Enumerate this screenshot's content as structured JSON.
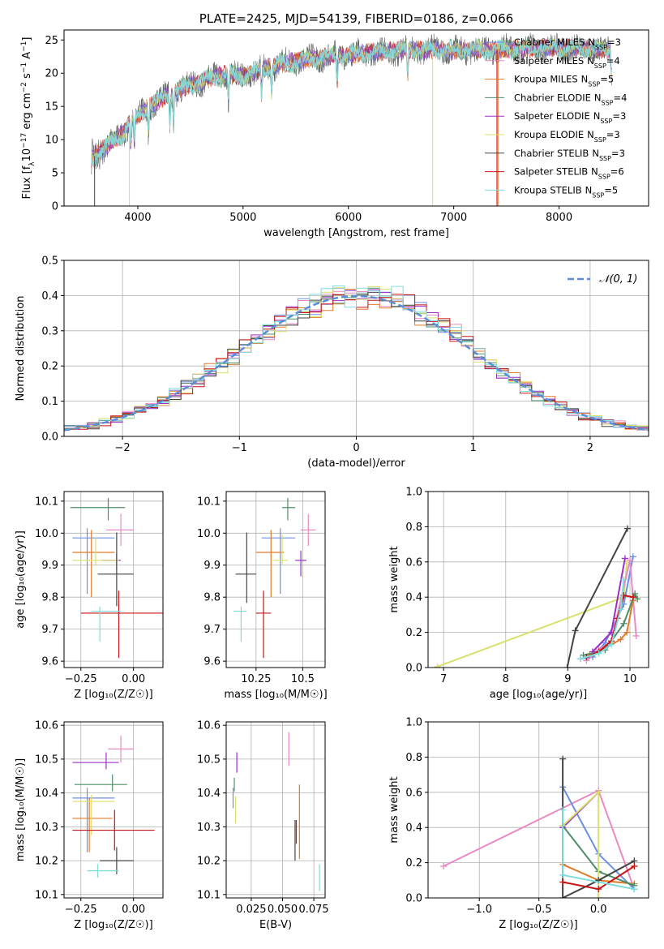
{
  "colors": {
    "Chabrier MILES": "#6b8fe0",
    "Salpeter MILES": "#e88ac4",
    "Kroupa MILES": "#e07b2a",
    "Chabrier ELODIE": "#4f8f67",
    "Salpeter ELODIE": "#9b30c8",
    "Kroupa ELODIE": "#d8e06a",
    "Chabrier STELIB": "#444444",
    "Salpeter STELIB": "#c81414",
    "Kroupa STELIB": "#7fdcdc"
  },
  "chart_data": [
    {
      "id": "spectrum",
      "type": "line",
      "title": "PLATE=2425, MJD=54139, FIBERID=0186, z=0.066",
      "xlabel": "wavelength [Angstrom, rest frame]",
      "ylabel_parts": [
        "Flux [f",
        "λ",
        "10",
        "−17",
        " erg cm",
        "−2",
        " s",
        "−1",
        " A",
        "−1",
        "]"
      ],
      "xlim": [
        3300,
        8850
      ],
      "ylim": [
        0,
        26.5
      ],
      "xticks": [
        4000,
        5000,
        6000,
        7000,
        8000
      ],
      "yticks": [
        0,
        5,
        10,
        15,
        20,
        25
      ],
      "continuum": {
        "x": [
          3550,
          3700,
          3850,
          3950,
          4100,
          4300,
          4500,
          4800,
          5000,
          5200,
          5400,
          5600,
          5800,
          6000,
          6300,
          6600,
          7000,
          7400,
          7800,
          8200,
          8500
        ],
        "y": [
          7,
          9,
          10.8,
          13,
          14.8,
          16.8,
          18.2,
          19.8,
          19.5,
          20.8,
          21.5,
          22,
          22.5,
          22.8,
          23.2,
          23.6,
          23.4,
          23.6,
          23.8,
          23.8,
          23.5
        ]
      },
      "legend": [
        {
          "name": "Chabrier MILES",
          "n_ssp": "3"
        },
        {
          "name": "Salpeter MILES",
          "n_ssp": "4"
        },
        {
          "name": "Kroupa MILES",
          "n_ssp": "5"
        },
        {
          "name": "Chabrier ELODIE",
          "n_ssp": "4"
        },
        {
          "name": "Salpeter ELODIE",
          "n_ssp": "3"
        },
        {
          "name": "Kroupa ELODIE",
          "n_ssp": "3"
        },
        {
          "name": "Chabrier STELIB",
          "n_ssp": "3"
        },
        {
          "name": "Salpeter STELIB",
          "n_ssp": "6"
        },
        {
          "name": "Kroupa STELIB",
          "n_ssp": "5"
        }
      ],
      "legend_prefix": "N",
      "legend_sub": "SSP"
    },
    {
      "id": "residuals",
      "type": "histogram",
      "xlabel": "(data-model)/error",
      "ylabel": "Normed distribution",
      "xlim": [
        -2.5,
        2.5
      ],
      "ylim": [
        0,
        0.5
      ],
      "xticks": [
        -2,
        -1,
        0,
        1,
        2
      ],
      "yticks": [
        0.0,
        0.1,
        0.2,
        0.3,
        0.4,
        0.5
      ],
      "bin_width": 0.1,
      "legend": "𝒩(0, 1)"
    },
    {
      "id": "age-vs-z",
      "type": "errorbar",
      "xlabel": "Z [log₁₀(Z/Z☉)]",
      "ylabel": "age  [log₁₀(age/yr)]",
      "xlim": [
        -0.33,
        0.14
      ],
      "ylim": [
        9.58,
        10.13
      ],
      "xticks": [
        -0.25,
        0.0
      ],
      "yticks": [
        9.6,
        9.7,
        9.8,
        9.9,
        10.0,
        10.1
      ],
      "points": [
        {
          "series": "Chabrier MILES",
          "x": -0.22,
          "xerr": [
            0.07,
            0.13
          ],
          "y": 9.985,
          "yerr": [
            0.175,
            0.03
          ]
        },
        {
          "series": "Salpeter MILES",
          "x": -0.06,
          "xerr": [
            0.07,
            0.06
          ],
          "y": 10.01,
          "yerr": [
            0.05,
            0.05
          ]
        },
        {
          "series": "Kroupa MILES",
          "x": -0.2,
          "xerr": [
            0.09,
            0.11
          ],
          "y": 9.94,
          "yerr": [
            0.14,
            0.07
          ]
        },
        {
          "series": "Chabrier ELODIE",
          "x": -0.12,
          "xerr": [
            0.18,
            0.08
          ],
          "y": 10.08,
          "yerr": [
            0.04,
            0.03
          ]
        },
        {
          "series": "Salpeter ELODIE",
          "x": -0.08,
          "xerr": [
            0.07,
            0.02
          ],
          "y": 9.915,
          "yerr": [
            0.03,
            0.02
          ]
        },
        {
          "series": "Kroupa ELODIE",
          "x": -0.18,
          "xerr": [
            0.11,
            0.11
          ],
          "y": 9.915,
          "yerr": [
            0.015,
            0.07
          ]
        },
        {
          "series": "Chabrier STELIB",
          "x": -0.08,
          "xerr": [
            0.09,
            0.08
          ],
          "y": 9.872,
          "yerr": [
            0.1,
            0.13
          ]
        },
        {
          "series": "Salpeter STELIB",
          "x": -0.07,
          "xerr": [
            0.18,
            0.23
          ],
          "y": 9.75,
          "yerr": [
            0.14,
            0.07
          ]
        },
        {
          "series": "Kroupa STELIB",
          "x": -0.16,
          "xerr": [
            0.04,
            0.1
          ],
          "y": 9.756,
          "yerr": [
            0.095,
            0.015
          ]
        }
      ]
    },
    {
      "id": "age-vs-mass",
      "type": "errorbar",
      "xlabel": "mass [log₁₀(M/M☉)]",
      "ylabel": "",
      "xlim": [
        10.09,
        10.62
      ],
      "ylim": [
        9.58,
        10.13
      ],
      "xticks": [
        10.25,
        10.5
      ],
      "yticks": [
        9.6,
        9.7,
        9.8,
        9.9,
        10.0,
        10.1
      ],
      "points": [
        {
          "series": "Chabrier MILES",
          "x": 10.38,
          "xerr": [
            0.1,
            0.08
          ],
          "y": 9.985,
          "yerr": [
            0.175,
            0.03
          ]
        },
        {
          "series": "Salpeter MILES",
          "x": 10.53,
          "xerr": [
            0.04,
            0.04
          ],
          "y": 10.01,
          "yerr": [
            0.05,
            0.05
          ]
        },
        {
          "series": "Kroupa MILES",
          "x": 10.33,
          "xerr": [
            0.08,
            0.07
          ],
          "y": 9.94,
          "yerr": [
            0.14,
            0.07
          ]
        },
        {
          "series": "Chabrier ELODIE",
          "x": 10.42,
          "xerr": [
            0.03,
            0.04
          ],
          "y": 10.08,
          "yerr": [
            0.04,
            0.03
          ]
        },
        {
          "series": "Salpeter ELODIE",
          "x": 10.49,
          "xerr": [
            0.03,
            0.03
          ],
          "y": 9.915,
          "yerr": [
            0.05,
            0.03
          ]
        },
        {
          "series": "Kroupa ELODIE",
          "x": 10.39,
          "xerr": [
            0.05,
            0.03
          ],
          "y": 9.915,
          "yerr": [
            0.015,
            0.08
          ]
        },
        {
          "series": "Chabrier STELIB",
          "x": 10.2,
          "xerr": [
            0.06,
            0.05
          ],
          "y": 9.872,
          "yerr": [
            0.09,
            0.13
          ]
        },
        {
          "series": "Salpeter STELIB",
          "x": 10.29,
          "xerr": [
            0.04,
            0.04
          ],
          "y": 9.75,
          "yerr": [
            0.14,
            0.07
          ]
        },
        {
          "series": "Kroupa STELIB",
          "x": 10.17,
          "xerr": [
            0.04,
            0.03
          ],
          "y": 9.756,
          "yerr": [
            0.095,
            0.015
          ]
        }
      ]
    },
    {
      "id": "weight-vs-age",
      "type": "line",
      "xlabel": "age  [log₁₀(age/yr)]",
      "ylabel": "mass weight",
      "xlim": [
        6.75,
        10.3
      ],
      "ylim": [
        0,
        1.0
      ],
      "xticks": [
        7,
        8,
        9,
        10
      ],
      "yticks": [
        0.0,
        0.2,
        0.4,
        0.6,
        0.8,
        1.0
      ],
      "series": [
        {
          "name": "Kroupa ELODIE",
          "x": [
            6.9,
            9.9,
            9.95
          ],
          "y": [
            0.005,
            0.4,
            0.6
          ]
        },
        {
          "name": "Chabrier MILES",
          "x": [
            9.2,
            9.4,
            9.6,
            9.9,
            10.05
          ],
          "y": [
            0.05,
            0.06,
            0.14,
            0.36,
            0.63
          ]
        },
        {
          "name": "Salpeter MILES",
          "x": [
            9.3,
            9.5,
            9.7,
            10.0,
            10.1
          ],
          "y": [
            0.04,
            0.1,
            0.15,
            0.61,
            0.18
          ]
        },
        {
          "name": "Kroupa MILES",
          "x": [
            9.35,
            9.6,
            9.85,
            9.95,
            10.05
          ],
          "y": [
            0.07,
            0.11,
            0.16,
            0.2,
            0.38
          ]
        },
        {
          "name": "Chabrier ELODIE",
          "x": [
            9.25,
            9.6,
            9.9,
            10.08,
            10.12
          ],
          "y": [
            0.07,
            0.1,
            0.25,
            0.42,
            0.39
          ]
        },
        {
          "name": "Salpeter ELODIE",
          "x": [
            9.4,
            9.7,
            9.92
          ],
          "y": [
            0.09,
            0.2,
            0.62
          ]
        },
        {
          "name": "Chabrier STELIB",
          "x": [
            8.99,
            9.12,
            9.96
          ],
          "y": [
            0.0,
            0.21,
            0.79
          ]
        },
        {
          "name": "Salpeter STELIB",
          "x": [
            9.3,
            9.5,
            9.7,
            9.8,
            9.9,
            10.05
          ],
          "y": [
            0.06,
            0.09,
            0.15,
            0.28,
            0.41,
            0.4
          ]
        },
        {
          "name": "Kroupa STELIB",
          "x": [
            9.2,
            9.5,
            9.7,
            9.85,
            9.9
          ],
          "y": [
            0.05,
            0.08,
            0.13,
            0.33,
            0.5
          ]
        }
      ]
    },
    {
      "id": "mass-vs-z",
      "type": "errorbar",
      "xlabel": "Z [log₁₀(Z/Z☉)]",
      "ylabel": "mass [log₁₀(M/M☉)]",
      "xlim": [
        -0.33,
        0.14
      ],
      "ylim": [
        10.09,
        10.61
      ],
      "xticks": [
        -0.25,
        0.0
      ],
      "yticks": [
        10.1,
        10.2,
        10.3,
        10.4,
        10.5,
        10.6
      ],
      "points": [
        {
          "series": "Chabrier MILES",
          "x": -0.22,
          "xerr": [
            0.07,
            0.13
          ],
          "y": 10.385,
          "yerr": [
            0.16,
            0.03
          ]
        },
        {
          "series": "Salpeter MILES",
          "x": -0.06,
          "xerr": [
            0.06,
            0.06
          ],
          "y": 10.53,
          "yerr": [
            0.04,
            0.04
          ]
        },
        {
          "series": "Kroupa MILES",
          "x": -0.21,
          "xerr": [
            0.08,
            0.11
          ],
          "y": 10.325,
          "yerr": [
            0.1,
            0.06
          ]
        },
        {
          "series": "Chabrier ELODIE",
          "x": -0.1,
          "xerr": [
            0.18,
            0.07
          ],
          "y": 10.425,
          "yerr": [
            0.02,
            0.03
          ]
        },
        {
          "series": "Salpeter ELODIE",
          "x": -0.13,
          "xerr": [
            0.16,
            0.06
          ],
          "y": 10.49,
          "yerr": [
            0.02,
            0.03
          ]
        },
        {
          "series": "Kroupa ELODIE",
          "x": -0.2,
          "xerr": [
            0.09,
            0.11
          ],
          "y": 10.375,
          "yerr": [
            0.1,
            0.02
          ]
        },
        {
          "series": "Chabrier STELIB",
          "x": -0.08,
          "xerr": [
            0.08,
            0.08
          ],
          "y": 10.2,
          "yerr": [
            0.04,
            0.04
          ]
        },
        {
          "series": "Salpeter STELIB",
          "x": -0.09,
          "xerr": [
            0.2,
            0.19
          ],
          "y": 10.29,
          "yerr": [
            0.06,
            0.06
          ]
        },
        {
          "series": "Kroupa STELIB",
          "x": -0.17,
          "xerr": [
            0.05,
            0.1
          ],
          "y": 10.17,
          "yerr": [
            0.02,
            0.02
          ]
        }
      ]
    },
    {
      "id": "mass-vs-ebv",
      "type": "errorbar",
      "xlabel": "E(B-V)",
      "ylabel": "",
      "xlim": [
        0.005,
        0.084
      ],
      "ylim": [
        10.09,
        10.61
      ],
      "xticks": [
        0.025,
        0.05,
        0.075
      ],
      "tick_labels": [
        "0.025",
        "0.050",
        "0.075"
      ],
      "yticks": [
        10.1,
        10.2,
        10.3,
        10.4,
        10.5,
        10.6
      ],
      "points": [
        {
          "series": "Chabrier MILES",
          "x": 0.0105,
          "xerr": [
            0,
            0
          ],
          "y": 10.385,
          "yerr": [
            0.03,
            0.03
          ]
        },
        {
          "series": "Salpeter MILES",
          "x": 0.055,
          "xerr": [
            0,
            0
          ],
          "y": 10.53,
          "yerr": [
            0.05,
            0.05
          ]
        },
        {
          "series": "Kroupa MILES",
          "x": 0.0635,
          "xerr": [
            0,
            0
          ],
          "y": 10.325,
          "yerr": [
            0.12,
            0.1
          ]
        },
        {
          "series": "Chabrier ELODIE",
          "x": 0.0115,
          "xerr": [
            0,
            0
          ],
          "y": 10.425,
          "yerr": [
            0.02,
            0.02
          ]
        },
        {
          "series": "Salpeter ELODIE",
          "x": 0.0135,
          "xerr": [
            0,
            0
          ],
          "y": 10.49,
          "yerr": [
            0.03,
            0.03
          ]
        },
        {
          "series": "Kroupa ELODIE",
          "x": 0.0125,
          "xerr": [
            0,
            0
          ],
          "y": 10.35,
          "yerr": [
            0.04,
            0.04
          ]
        },
        {
          "series": "Chabrier STELIB",
          "x": 0.06,
          "xerr": [
            0,
            0
          ],
          "y": 10.25,
          "yerr": [
            0.05,
            0.07
          ]
        },
        {
          "series": "Salpeter STELIB",
          "x": 0.061,
          "xerr": [
            0,
            0
          ],
          "y": 10.29,
          "yerr": [
            0.04,
            0.03
          ]
        },
        {
          "series": "Kroupa STELIB",
          "x": 0.0795,
          "xerr": [
            0,
            0
          ],
          "y": 10.15,
          "yerr": [
            0.04,
            0.04
          ]
        }
      ]
    },
    {
      "id": "weight-vs-z",
      "type": "line",
      "xlabel": "Z [log₁₀(Z/Z☉)]",
      "ylabel": "mass weight",
      "xlim": [
        -1.43,
        0.42
      ],
      "ylim": [
        0,
        1.0
      ],
      "xticks": [
        -1.0,
        -0.5,
        0.0
      ],
      "tick_labels": [
        "−1.0",
        "−0.5",
        "0.0"
      ],
      "yticks": [
        0.0,
        0.2,
        0.4,
        0.6,
        0.8,
        1.0
      ],
      "series": [
        {
          "name": "Salpeter MILES",
          "x": [
            -1.3,
            0.0,
            0.3
          ],
          "y": [
            0.18,
            0.61,
            0.05
          ]
        },
        {
          "name": "Chabrier MILES",
          "x": [
            -0.3,
            0.0,
            0.3
          ],
          "y": [
            0.63,
            0.25,
            0.05
          ]
        },
        {
          "name": "Kroupa MILES",
          "x": [
            -0.3,
            0.0,
            0.3
          ],
          "y": [
            0.19,
            0.1,
            0.08
          ]
        },
        {
          "name": "Chabrier ELODIE",
          "x": [
            -0.3,
            0.0,
            0.3
          ],
          "y": [
            0.41,
            0.15,
            0.07
          ]
        },
        {
          "name": "Salpeter ELODIE",
          "x": [
            -0.3,
            0.0
          ],
          "y": [
            0.4,
            0.6
          ]
        },
        {
          "name": "Kroupa ELODIE",
          "x": [
            -0.3,
            0.0,
            0.0
          ],
          "y": [
            0.41,
            0.6,
            0.0
          ]
        },
        {
          "name": "Chabrier STELIB",
          "x": [
            -0.3,
            -0.3,
            0.0,
            0.3
          ],
          "y": [
            0.79,
            0.0,
            0.1,
            0.21
          ]
        },
        {
          "name": "Salpeter STELIB",
          "x": [
            -0.3,
            0.0,
            0.3
          ],
          "y": [
            0.09,
            0.05,
            0.18
          ]
        },
        {
          "name": "Kroupa STELIB",
          "x": [
            -0.3,
            -0.3,
            0.3
          ],
          "y": [
            0.5,
            0.13,
            0.05
          ]
        }
      ]
    }
  ]
}
